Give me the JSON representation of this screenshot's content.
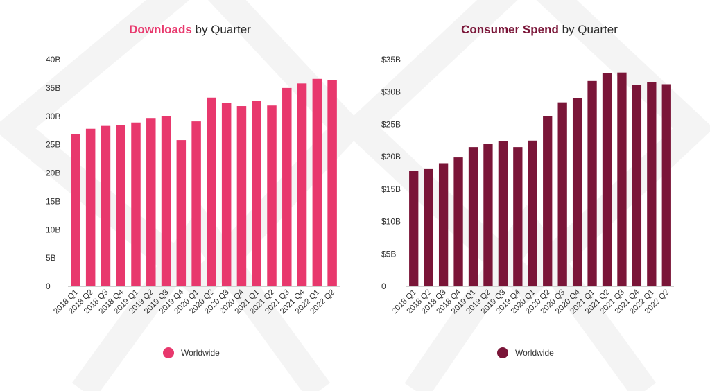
{
  "colors": {
    "downloads": "#e8386d",
    "spend": "#7a1538",
    "axis": "#cfcfcf",
    "watermark": "#f3f3f3"
  },
  "chart_data": [
    {
      "type": "bar",
      "title_highlight": "Downloads",
      "title_rest": " by Quarter",
      "categories": [
        "2018 Q1",
        "2018 Q2",
        "2018 Q3",
        "2018 Q4",
        "2019 Q1",
        "2019 Q2",
        "2019 Q3",
        "2019 Q4",
        "2020 Q1",
        "2020 Q2",
        "2020 Q3",
        "2020 Q4",
        "2021 Q1",
        "2021 Q2",
        "2021 Q3",
        "2021 Q4",
        "2022 Q1",
        "2022 Q2"
      ],
      "series": [
        {
          "name": "Worldwide",
          "values": [
            26.8,
            27.8,
            28.3,
            28.4,
            28.9,
            29.7,
            30.0,
            25.8,
            29.1,
            33.3,
            32.4,
            31.8,
            32.7,
            31.9,
            35.0,
            35.8,
            36.6,
            36.4
          ]
        }
      ],
      "yticks": [
        "0",
        "5B",
        "10B",
        "15B",
        "20B",
        "25B",
        "30B",
        "35B",
        "40B"
      ],
      "ylim": [
        0,
        40
      ],
      "legend_position": "bottom"
    },
    {
      "type": "bar",
      "title_highlight": "Consumer Spend",
      "title_rest": " by Quarter",
      "categories": [
        "2018 Q1",
        "2018 Q2",
        "2018 Q3",
        "2018 Q4",
        "2019 Q1",
        "2019 Q2",
        "2019 Q3",
        "2019 Q4",
        "2020 Q1",
        "2020 Q2",
        "2020 Q3",
        "2020 Q4",
        "2021 Q1",
        "2021 Q2",
        "2021 Q3",
        "2021 Q4",
        "2022 Q1",
        "2022 Q2"
      ],
      "series": [
        {
          "name": "Worldwide",
          "values": [
            17.8,
            18.1,
            19.0,
            19.9,
            21.5,
            22.0,
            22.4,
            21.5,
            22.5,
            26.3,
            28.4,
            29.1,
            31.7,
            32.9,
            33.0,
            31.1,
            31.5,
            31.2
          ]
        }
      ],
      "yticks": [
        "0",
        "$5B",
        "$10B",
        "$15B",
        "$20B",
        "$25B",
        "$30B",
        "$35B"
      ],
      "ylim": [
        0,
        35
      ],
      "legend_position": "bottom"
    }
  ]
}
